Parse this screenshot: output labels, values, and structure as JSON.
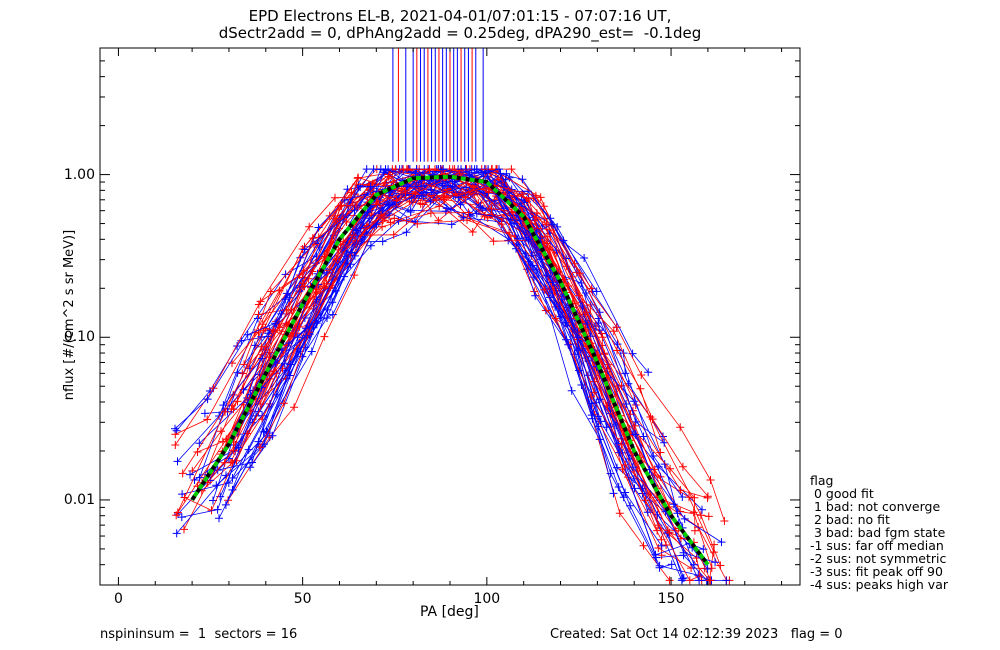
{
  "chart_data": {
    "type": "line",
    "title": "EPD Electrons EL-B, 2021-04-01/07:01:15 - 07:07:16 UT,",
    "subtitle": "dSectr2add = 0, dPhAng2add = 0.25deg, dPA290_est=  -0.1deg",
    "xlabel": "PA [deg]",
    "ylabel": "nflux [#/(cm^2 s sr MeV)]",
    "xlim": [
      -5,
      185
    ],
    "ylim": [
      0.003,
      6
    ],
    "yscale": "log",
    "x_ticks": [
      0,
      50,
      100,
      150
    ],
    "y_ticks": [
      0.01,
      0.1,
      1.0
    ],
    "y_tick_labels": [
      "0.01",
      "0.10",
      "1.00"
    ],
    "series_colors": {
      "red": "#ff0000",
      "blue": "#0000ff",
      "fit_green": "#00cc00",
      "fit_black": "#000000"
    },
    "median_fit": {
      "x": [
        20,
        30,
        40,
        50,
        60,
        70,
        80,
        90,
        100,
        110,
        120,
        130,
        140,
        150,
        160
      ],
      "y": [
        0.01,
        0.022,
        0.06,
        0.16,
        0.4,
        0.75,
        0.95,
        0.97,
        0.9,
        0.55,
        0.22,
        0.07,
        0.02,
        0.008,
        0.004
      ]
    },
    "near90_lines_x": [
      74.5,
      76,
      78,
      80,
      81,
      82,
      83,
      84,
      85,
      86,
      87,
      88,
      89,
      90,
      91,
      92,
      93,
      94,
      95,
      96,
      97,
      99
    ],
    "legend": {
      "title": "flag",
      "entries": [
        " 0 good fit",
        " 1 bad: not converge",
        " 2 bad: no fit",
        " 3 bad: bad fgm state",
        "-1 sus: far off median",
        "-2 sus: not symmetric",
        "-3 sus: fit peak off 90",
        "-4 sus: peaks high var"
      ]
    }
  },
  "footer": {
    "left": "nspininsum =  1  sectors = 16",
    "right": "Created: Sat Oct 14 02:12:39 2023   flag = 0"
  }
}
